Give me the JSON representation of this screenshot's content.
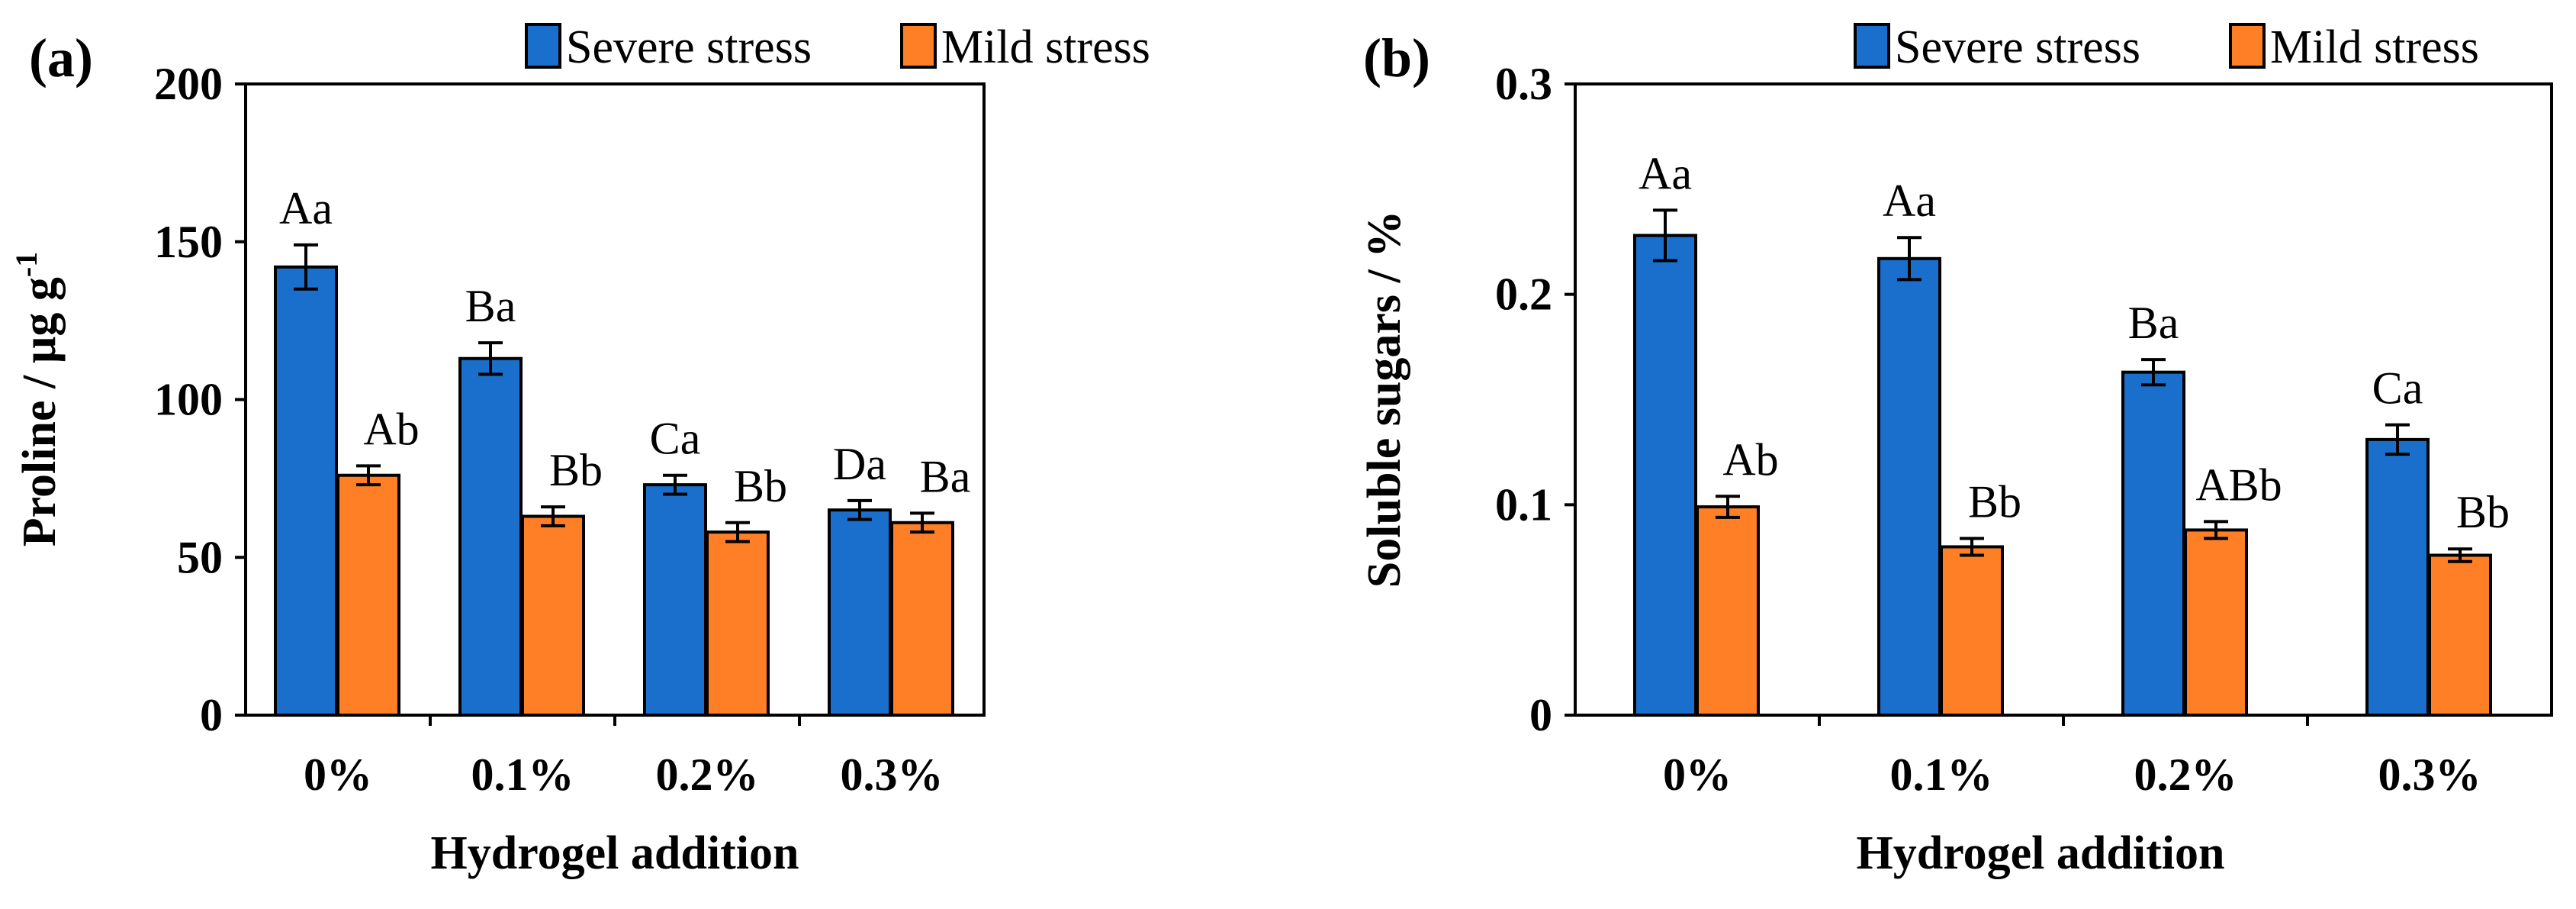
{
  "chart_data": [
    {
      "panel": "(a)",
      "type": "bar",
      "categories": [
        "0%",
        "0.1%",
        "0.2%",
        "0.3%"
      ],
      "series": [
        {
          "name": "Severe stress",
          "color": "#1a6fcc",
          "values": [
            142,
            113,
            73,
            65
          ],
          "errors": [
            7,
            5,
            3,
            3
          ],
          "labels": [
            "Aa",
            "Ba",
            "Ca",
            "Da"
          ]
        },
        {
          "name": "Mild stress",
          "color": "#ff7f27",
          "values": [
            76,
            63,
            58,
            61
          ],
          "errors": [
            3,
            3,
            3,
            3
          ],
          "labels": [
            "Ab",
            "Bb",
            "Bb",
            "Ba"
          ]
        }
      ],
      "xlabel": "Hydrogel addition",
      "ylabel": "Proline / µg g",
      "ylabel_sup": "-1",
      "ylim": [
        0,
        200
      ],
      "yticks": [
        0,
        50,
        100,
        150,
        200
      ],
      "ytick_labels": [
        "0",
        "50",
        "100",
        "150",
        "200"
      ],
      "legend": "top-right"
    },
    {
      "panel": "(b)",
      "type": "bar",
      "categories": [
        "0%",
        "0.1%",
        "0.2%",
        "0.3%"
      ],
      "series": [
        {
          "name": "Severe stress",
          "color": "#1a6fcc",
          "values": [
            0.228,
            0.217,
            0.163,
            0.131
          ],
          "errors": [
            0.012,
            0.01,
            0.006,
            0.007
          ],
          "labels": [
            "Aa",
            "Aa",
            "Ba",
            "Ca"
          ]
        },
        {
          "name": "Mild stress",
          "color": "#ff7f27",
          "values": [
            0.099,
            0.08,
            0.088,
            0.076
          ],
          "errors": [
            0.005,
            0.004,
            0.004,
            0.003
          ],
          "labels": [
            "Ab",
            "Bb",
            "ABb",
            "Bb"
          ]
        }
      ],
      "xlabel": "Hydrogel addition",
      "ylabel": "Soluble sugars / %",
      "ylabel_sup": "",
      "ylim": [
        0,
        0.3
      ],
      "yticks": [
        0,
        0.1,
        0.2,
        0.3
      ],
      "ytick_labels": [
        "0",
        "0.1",
        "0.2",
        "0.3"
      ],
      "legend": "top-right"
    }
  ]
}
